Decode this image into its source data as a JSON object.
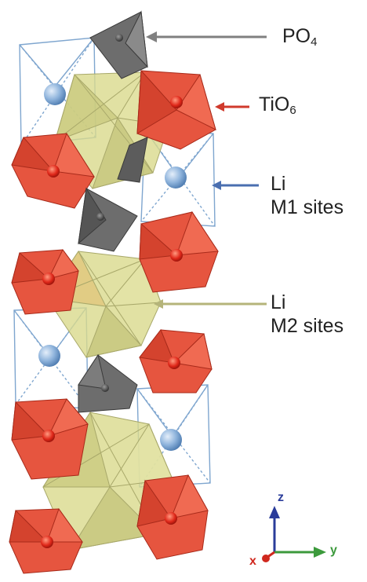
{
  "labels": {
    "po4": {
      "main": "PO",
      "sub": "4",
      "arrow_color": "#808080"
    },
    "tio6": {
      "main": "TiO",
      "sub": "6",
      "arrow_color": "#d03a2c"
    },
    "li_m1": {
      "line1": "Li",
      "line2": "M1 sites",
      "arrow_color": "#4a6fb0"
    },
    "li_m2": {
      "line1": "Li",
      "line2": "M2 sites",
      "arrow_color": "#b5b47a"
    }
  },
  "axes": {
    "z": {
      "label": "z",
      "color": "#2a3c9a"
    },
    "y": {
      "label": "y",
      "color": "#3c9a3c"
    },
    "x": {
      "label": "x",
      "color": "#d0281e"
    }
  },
  "colors": {
    "octa_red": "#e6553f",
    "octa_red_dark": "#c23a28",
    "tetra_gray": "#6d6d6d",
    "li_m2_yellow": "#d9d98c",
    "cage_blue": "#7fa6cf",
    "li_sphere": "#8fb4dc"
  }
}
